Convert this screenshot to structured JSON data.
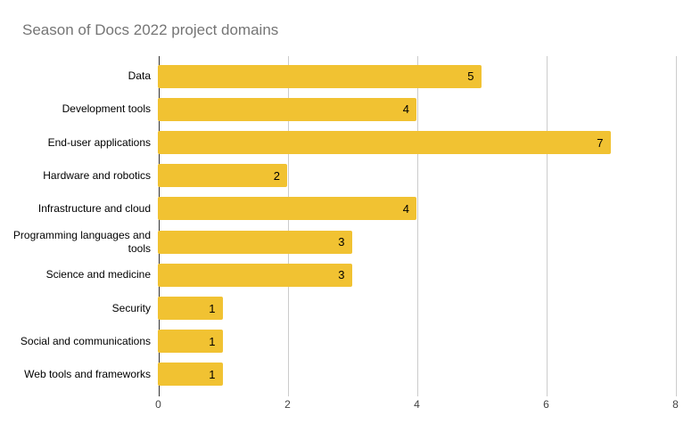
{
  "title": "Season of Docs 2022 project domains",
  "colors": {
    "bar": "#F1C232",
    "gridline": "#CCCCCC",
    "axis_line": "#333333",
    "title_text": "#757575",
    "category_text": "#000000",
    "value_text": "#000000",
    "tick_text": "#444444",
    "background": "#FFFFFF"
  },
  "chart_data": {
    "type": "bar",
    "orientation": "horizontal",
    "title": "Season of Docs 2022 project domains",
    "categories": [
      "Data",
      "Development tools",
      "End-user applications",
      "Hardware and robotics",
      "Infrastructure and cloud",
      "Programming languages and tools",
      "Science and medicine",
      "Security",
      "Social and communications",
      "Web tools and frameworks"
    ],
    "values": [
      5,
      4,
      7,
      2,
      4,
      3,
      3,
      1,
      1,
      1
    ],
    "bar_labels": [
      5,
      4,
      7,
      2,
      4,
      3,
      3,
      1,
      1,
      1
    ],
    "xlabel": "",
    "ylabel": "",
    "xlim": [
      0,
      8
    ],
    "x_ticks": [
      0,
      2,
      4,
      6,
      8
    ],
    "grid": true,
    "legend": "none"
  }
}
